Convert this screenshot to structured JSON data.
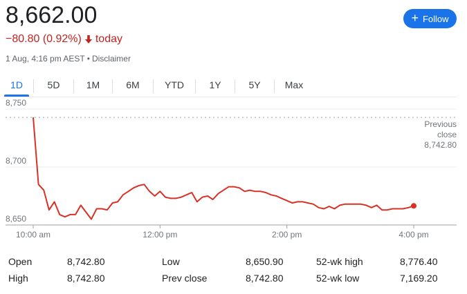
{
  "quote": {
    "price": "8,662.00",
    "change": "−80.80 (0.92%)",
    "period": "today",
    "timestamp": "1 Aug, 4:16 pm AEST",
    "disclaimer": "Disclaimer"
  },
  "follow_button": {
    "label": "Follow"
  },
  "tabs": [
    "1D",
    "5D",
    "1M",
    "6M",
    "YTD",
    "1Y",
    "5Y",
    "Max"
  ],
  "active_tab": "1D",
  "colors": {
    "line": "#d93025",
    "accent": "#1a73e8",
    "negative": "#c5221f"
  },
  "chart_data": {
    "type": "line",
    "x": [
      "10:00",
      "10:05",
      "10:10",
      "10:15",
      "10:20",
      "10:25",
      "10:30",
      "10:35",
      "10:40",
      "10:45",
      "10:50",
      "10:55",
      "11:00",
      "11:05",
      "11:10",
      "11:15",
      "11:20",
      "11:25",
      "11:30",
      "11:35",
      "11:40",
      "11:45",
      "11:50",
      "11:55",
      "12:00",
      "12:05",
      "12:10",
      "12:15",
      "12:20",
      "12:25",
      "12:30",
      "12:35",
      "12:40",
      "12:45",
      "12:50",
      "12:55",
      "13:00",
      "13:05",
      "13:10",
      "13:15",
      "13:20",
      "13:25",
      "13:30",
      "13:35",
      "13:40",
      "13:45",
      "13:50",
      "13:55",
      "14:00",
      "14:05",
      "14:10",
      "14:15",
      "14:20",
      "14:25",
      "14:30",
      "14:35",
      "14:40",
      "14:45",
      "14:50",
      "14:55",
      "15:00",
      "15:05",
      "15:10",
      "15:15",
      "15:20",
      "15:25",
      "15:30",
      "15:35",
      "15:40",
      "15:45",
      "15:50",
      "15:55",
      "16:00"
    ],
    "series": [
      {
        "values": [
          8742.8,
          8685,
          8680,
          8663,
          8670,
          8659,
          8657,
          8659,
          8659,
          8667,
          8661,
          8655,
          8664,
          8664,
          8663,
          8669,
          8670,
          8676,
          8679,
          8682,
          8684,
          8685,
          8679,
          8675,
          8679,
          8674,
          8673,
          8673,
          8674,
          8676,
          8678,
          8670,
          8674,
          8675,
          8672,
          8677,
          8680,
          8683,
          8683,
          8682,
          8679,
          8680,
          8679,
          8679,
          8678,
          8676,
          8675,
          8673,
          8671,
          8669,
          8670,
          8670,
          8669,
          8668,
          8665,
          8664,
          8666,
          8664,
          8667,
          8668,
          8668,
          8668,
          8668,
          8667,
          8665,
          8667,
          8663,
          8663,
          8664,
          8664,
          8664,
          8665,
          8666.5
        ]
      }
    ],
    "ylim": [
      8650,
      8750
    ],
    "yticks": [
      "8,750",
      "8,700",
      "8,650"
    ],
    "yticks_values": [
      8750,
      8700,
      8650
    ],
    "xticks": [
      "10:00 am",
      "12:00 pm",
      "2:00 pm",
      "4:00 pm"
    ],
    "xticks_index": [
      0,
      24,
      48,
      72
    ],
    "previous_close": {
      "label_line1": "Previous",
      "label_line2": "close",
      "value": "8,742.80",
      "y": 8742.8
    }
  },
  "stats": {
    "open_label": "Open",
    "open_value": "8,742.80",
    "high_label": "High",
    "high_value": "8,742.80",
    "low_label": "Low",
    "low_value": "8,650.90",
    "prev_close_label": "Prev close",
    "prev_close_value": "8,742.80",
    "wk52_high_label": "52-wk high",
    "wk52_high_value": "8,776.40",
    "wk52_low_label": "52-wk low",
    "wk52_low_value": "7,169.20"
  }
}
